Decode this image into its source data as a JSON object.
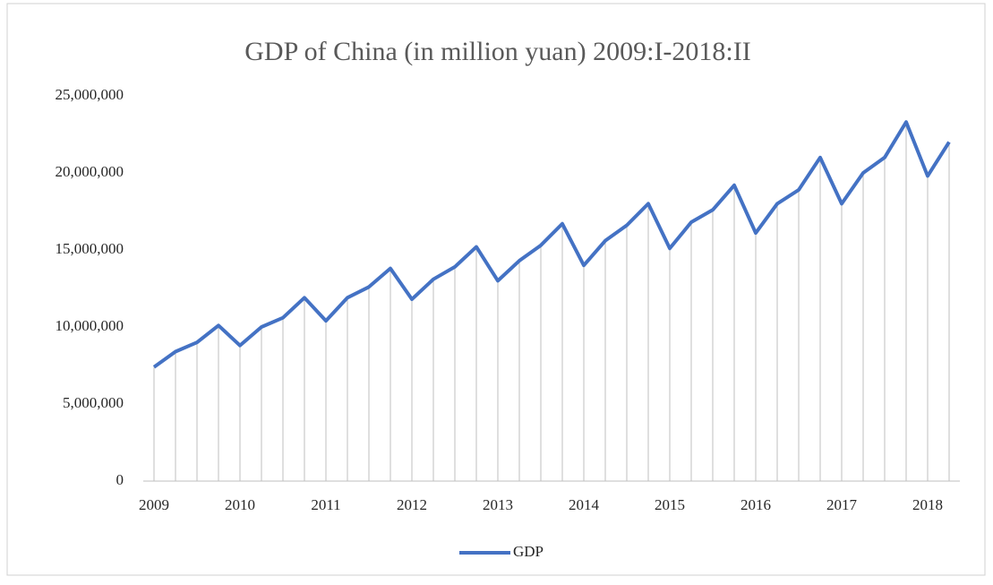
{
  "chart_data": {
    "type": "line",
    "title": "GDP of China (in million yuan) 2009:I-2018:II",
    "categories": [
      "2009",
      null,
      null,
      null,
      "2010",
      null,
      null,
      null,
      "2011",
      null,
      null,
      null,
      "2012",
      null,
      null,
      null,
      "2013",
      null,
      null,
      null,
      "2014",
      null,
      null,
      null,
      "2015",
      null,
      null,
      null,
      "2016",
      null,
      null,
      null,
      "2017",
      null,
      null,
      null,
      "2018",
      null
    ],
    "series": [
      {
        "name": "GDP",
        "color": "#4472c4",
        "values": [
          7400000,
          8400000,
          9000000,
          10100000,
          8800000,
          10000000,
          10600000,
          11900000,
          10400000,
          11900000,
          12600000,
          13800000,
          11800000,
          13100000,
          13900000,
          15200000,
          13000000,
          14300000,
          15300000,
          16700000,
          14000000,
          15600000,
          16600000,
          18000000,
          15100000,
          16800000,
          17600000,
          19200000,
          16100000,
          18000000,
          18900000,
          21000000,
          18000000,
          20000000,
          21000000,
          23300000,
          19800000,
          22000000
        ]
      }
    ],
    "ylim": [
      0,
      25000000
    ],
    "yticks": [
      0,
      {
        "value": 5000000,
        "label": "5,000,000"
      },
      {
        "value": 10000000,
        "label": "10,000,000"
      },
      {
        "value": 15000000,
        "label": "15,000,000"
      },
      {
        "value": 20000000,
        "label": "20,000,000"
      },
      {
        "value": 25000000,
        "label": "25,000,000"
      }
    ],
    "drop_lines": true,
    "legend": "bottom"
  }
}
